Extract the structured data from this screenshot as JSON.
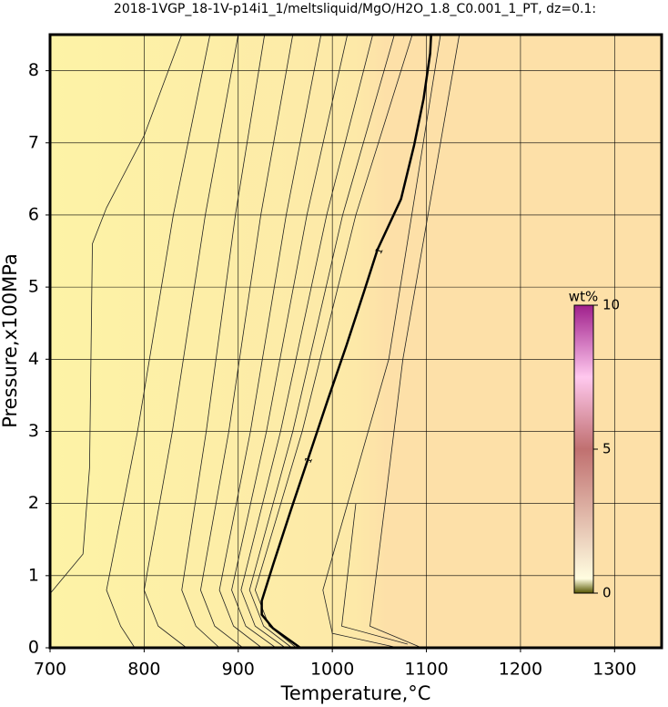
{
  "chart_data": {
    "type": "contour",
    "title": "2018-1VGP_18-1V-p14i1_1/meltsliquid/MgO/H2O_1.8_C0.001_1_PT, dz=0.1:",
    "x_label": "Temperature,°C",
    "y_label": "Pressure,x100MPa",
    "xlim": [
      700,
      1350
    ],
    "ylim": [
      0,
      8.5
    ],
    "xticks": [
      700,
      800,
      900,
      1000,
      1100,
      1200,
      1300
    ],
    "yticks": [
      0,
      1,
      2,
      3,
      4,
      5,
      6,
      7,
      8
    ],
    "grid": true,
    "series": [
      {
        "color": "#222",
        "width": 0.8,
        "x": [
          700,
          735,
          742,
          745,
          760,
          800,
          840
        ],
        "y": [
          0.75,
          1.3,
          2.5,
          5.6,
          6.1,
          7.1,
          8.5
        ]
      },
      {
        "color": "#222",
        "width": 0.8,
        "x": [
          790,
          775,
          760,
          793,
          831,
          870
        ],
        "y": [
          0,
          0.3,
          0.8,
          3,
          6,
          8.5
        ]
      },
      {
        "color": "#222",
        "width": 0.8,
        "x": [
          845,
          815,
          800,
          830,
          865,
          900
        ],
        "y": [
          0,
          0.3,
          0.8,
          3,
          6,
          8.5
        ]
      },
      {
        "color": "#222",
        "width": 0.8,
        "x": [
          880,
          855,
          840,
          866,
          897,
          928
        ],
        "y": [
          0,
          0.3,
          0.8,
          3,
          6,
          8.5
        ]
      },
      {
        "color": "#222",
        "width": 0.8,
        "x": [
          905,
          875,
          860,
          890,
          924,
          958
        ],
        "y": [
          0,
          0.3,
          0.8,
          3,
          6,
          8.5
        ]
      },
      {
        "color": "#222",
        "width": 0.8,
        "x": [
          925,
          895,
          880,
          913,
          951,
          988
        ],
        "y": [
          0,
          0.3,
          0.8,
          3,
          6,
          8.5
        ]
      },
      {
        "color": "#222",
        "width": 0.8,
        "x": [
          940,
          908,
          893,
          930,
          973,
          1016
        ],
        "y": [
          0,
          0.3,
          0.8,
          3,
          6,
          8.5
        ]
      },
      {
        "color": "#222",
        "width": 0.8,
        "x": [
          950,
          918,
          903,
          945,
          994,
          1043
        ],
        "y": [
          0,
          0.3,
          0.8,
          3,
          6,
          8.5
        ]
      },
      {
        "color": "#222",
        "width": 0.8,
        "x": [
          957,
          927,
          912,
          958,
          1011,
          1066
        ],
        "y": [
          0,
          0.3,
          0.8,
          3,
          6,
          8.5
        ]
      },
      {
        "color": "#222",
        "width": 0.8,
        "x": [
          962,
          933,
          918,
          968,
          1025,
          1085
        ],
        "y": [
          0,
          0.3,
          0.8,
          3,
          6,
          8.5
        ]
      },
      {
        "color": "#000",
        "width": 2.5,
        "x": [
          966,
          937,
          925,
          925,
          937,
          956,
          974,
          995,
          1015,
          1034,
          1048,
          1073,
          1087,
          1097,
          1104,
          1105
        ],
        "y": [
          0,
          0.27,
          0.46,
          0.65,
          1.15,
          1.91,
          2.61,
          3.43,
          4.19,
          4.95,
          5.52,
          6.22,
          6.97,
          7.61,
          8.24,
          8.5
        ]
      },
      {
        "color": "#222",
        "width": 0.8,
        "x": [
          1070,
          1000,
          990,
          1060,
          1115
        ],
        "y": [
          0,
          0.2,
          0.8,
          4,
          8.5
        ]
      },
      {
        "color": "#222",
        "width": 0.8,
        "x": [
          1080,
          1010,
          1025
        ],
        "y": [
          0.05,
          0.3,
          2.0
        ]
      },
      {
        "color": "#222",
        "width": 0.8,
        "x": [
          1095,
          1040,
          1075,
          1135
        ],
        "y": [
          0,
          0.3,
          4,
          8.5
        ]
      }
    ],
    "contour_labels": [
      {
        "text": "1",
        "x": 1050,
        "y": 5.5
      },
      {
        "text": "1",
        "x": 975,
        "y": 2.6
      }
    ],
    "colorbar": {
      "label": "wt%",
      "lim": [
        0,
        10
      ],
      "ticks": [
        0,
        5,
        10
      ]
    }
  }
}
